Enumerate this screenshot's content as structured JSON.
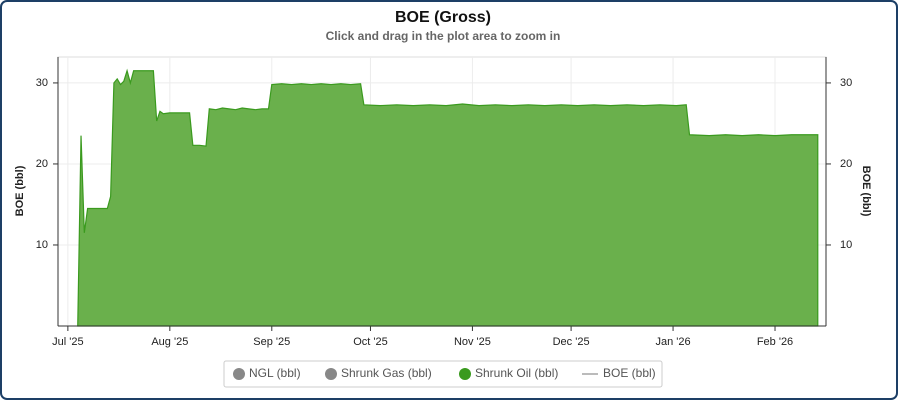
{
  "chart_data": {
    "type": "area",
    "title": "BOE (Gross)",
    "subtitle": "Click and drag in the plot area to zoom in",
    "y_label": "BOE (bbl)",
    "y2_label": "BOE (bbl)",
    "x": [
      3,
      4,
      5,
      6,
      8,
      10,
      12,
      13,
      14,
      15,
      16,
      17,
      18,
      19,
      20,
      22,
      24,
      26,
      27,
      28,
      29,
      31,
      33,
      35,
      37,
      38,
      40,
      42,
      43,
      45,
      47,
      49,
      51,
      53,
      55,
      57,
      59,
      61,
      62,
      65,
      68,
      71,
      74,
      77,
      80,
      83,
      86,
      89,
      90,
      95,
      100,
      105,
      110,
      115,
      120,
      125,
      130,
      135,
      140,
      145,
      150,
      155,
      160,
      165,
      170,
      175,
      180,
      185,
      188,
      189,
      195,
      200,
      205,
      210,
      215,
      220,
      225,
      228
    ],
    "series": [
      {
        "name": "NGL (bbl)",
        "color": "#888888"
      },
      {
        "name": "Shrunk Gas (bbl)",
        "color": "#888888"
      },
      {
        "name": "Shrunk Oil (bbl)",
        "color": "#3a9a1e",
        "fill": "#6ab04c",
        "values": [
          0,
          23.5,
          11.5,
          14.5,
          14.5,
          14.5,
          14.5,
          16,
          30,
          30.5,
          29.8,
          30.2,
          31.5,
          30,
          31.5,
          31.5,
          31.5,
          31.5,
          25.3,
          26.5,
          26.2,
          26.3,
          26.3,
          26.3,
          26.3,
          22.3,
          22.3,
          22.2,
          26.8,
          26.7,
          26.9,
          26.8,
          26.7,
          26.9,
          26.8,
          26.7,
          26.8,
          26.8,
          29.8,
          29.9,
          29.8,
          29.9,
          29.8,
          29.9,
          29.8,
          29.9,
          29.8,
          29.9,
          27.3,
          27.2,
          27.3,
          27.2,
          27.3,
          27.2,
          27.4,
          27.2,
          27.3,
          27.2,
          27.3,
          27.2,
          27.3,
          27.2,
          27.3,
          27.2,
          27.3,
          27.2,
          27.3,
          27.2,
          27.3,
          23.6,
          23.5,
          23.6,
          23.5,
          23.6,
          23.5,
          23.6,
          23.6,
          23.6
        ]
      },
      {
        "name": "BOE (bbl)",
        "color": "#bbbbbb",
        "type": "line"
      }
    ],
    "xlim": [
      -3,
      230.5
    ],
    "xticks": [
      {
        "value": 0,
        "label": "Jul '25"
      },
      {
        "value": 31,
        "label": "Aug '25"
      },
      {
        "value": 62,
        "label": "Sep '25"
      },
      {
        "value": 92,
        "label": "Oct '25"
      },
      {
        "value": 123,
        "label": "Nov '25"
      },
      {
        "value": 153,
        "label": "Dec '25"
      },
      {
        "value": 184,
        "label": "Jan '26"
      },
      {
        "value": 215,
        "label": "Feb '26"
      }
    ],
    "ylim": [
      0,
      33.2
    ],
    "yticks": [
      10,
      20,
      30
    ],
    "y2lim": [
      0,
      33.2
    ],
    "y2ticks": [
      10,
      20,
      30
    ],
    "grid": true
  }
}
